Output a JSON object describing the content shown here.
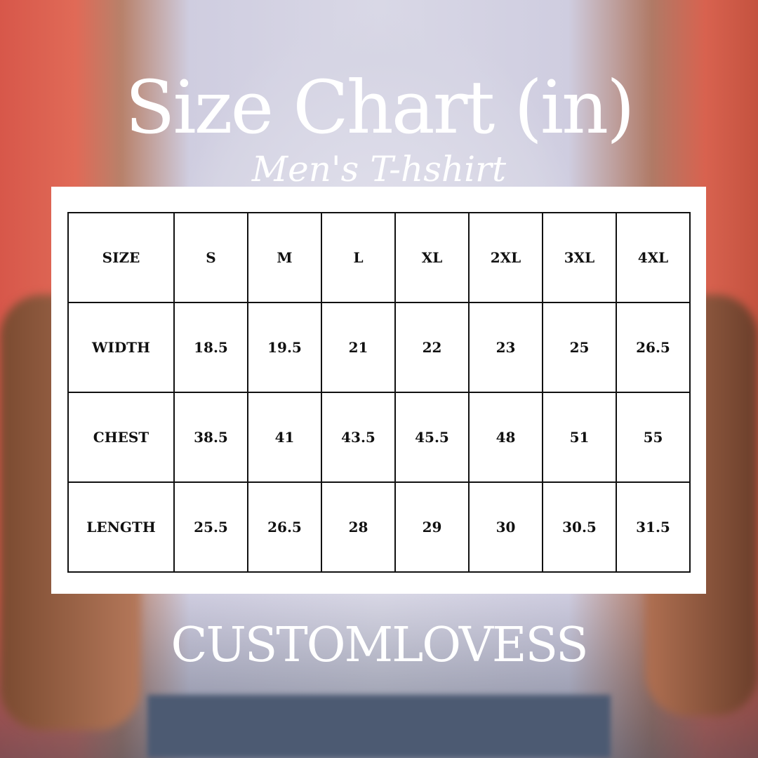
{
  "title": "Size Chart (in)",
  "subtitle": "Men's T-hshirt",
  "brand": "CUSTOMLOVESS",
  "table": {
    "header": [
      "SIZE",
      "S",
      "M",
      "L",
      "XL",
      "2XL",
      "3XL",
      "4XL"
    ],
    "rows": [
      [
        "WIDTH",
        "18.5",
        "19.5",
        "21",
        "22",
        "23",
        "25",
        "26.5"
      ],
      [
        "CHEST",
        "38.5",
        "41",
        "43.5",
        "45.5",
        "48",
        "51",
        "55"
      ],
      [
        "LENGTH",
        "25.5",
        "26.5",
        "28",
        "29",
        "30",
        "30.5",
        "31.5"
      ]
    ]
  }
}
